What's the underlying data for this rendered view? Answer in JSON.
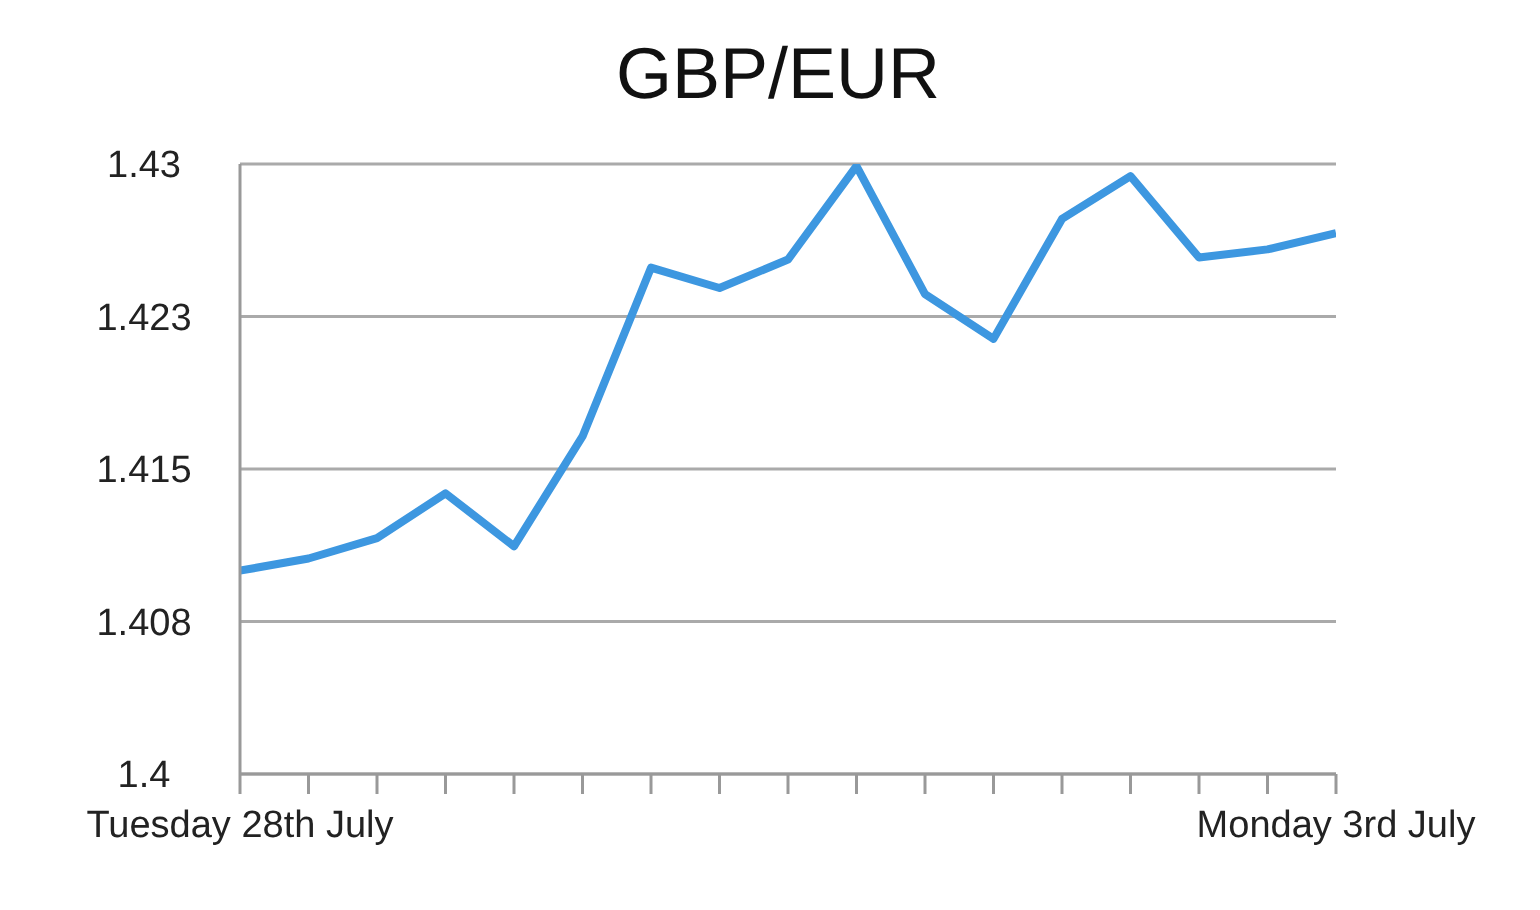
{
  "chart_data": {
    "type": "line",
    "title": "GBP/EUR",
    "categories": [
      "Tuesday 28th July",
      null,
      null,
      null,
      null,
      null,
      null,
      null,
      null,
      null,
      null,
      null,
      null,
      null,
      null,
      null,
      "Monday 3rd July"
    ],
    "series": [
      {
        "color": "#3d97e0",
        "values": [
          1.41,
          1.4106,
          1.4116,
          1.4138,
          1.4112,
          1.4166,
          1.4249,
          1.4239,
          1.4253,
          1.4299,
          1.4236,
          1.4214,
          1.4273,
          1.4294,
          1.4254,
          1.4258,
          1.4266
        ]
      }
    ],
    "ylim": [
      1.4,
      1.43
    ],
    "yticks": [
      1.4,
      {
        "value": 1.4075,
        "label": "1.408"
      },
      1.415,
      {
        "value": 1.4225,
        "label": "1.423"
      },
      1.43
    ],
    "grid": "y",
    "legend": false,
    "marker": "none",
    "line_style": "solid"
  }
}
